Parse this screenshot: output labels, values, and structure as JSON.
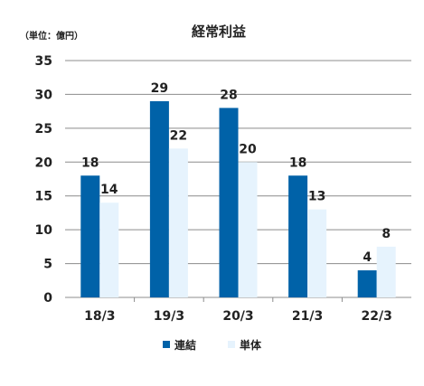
{
  "chart_data": {
    "type": "bar",
    "title": "経常利益",
    "unit_label": "（単位：億円）",
    "categories": [
      "18/3",
      "19/3",
      "20/3",
      "21/3",
      "22/3"
    ],
    "series": [
      {
        "name": "連結",
        "values": [
          18,
          29,
          28,
          18,
          4
        ],
        "labels": [
          "18",
          "29",
          "28",
          "18",
          "4"
        ]
      },
      {
        "name": "単体",
        "values": [
          14,
          22,
          20,
          13,
          7.5
        ],
        "labels": [
          "14",
          "22",
          "20",
          "13",
          "8"
        ]
      }
    ],
    "ylim": [
      0,
      35
    ],
    "yticks": [
      0,
      5,
      10,
      15,
      20,
      25,
      30,
      35
    ],
    "grid": true,
    "legend_position": "bottom",
    "colors": {
      "連結": "#0062a8",
      "単体": "#e6f3fd"
    }
  }
}
